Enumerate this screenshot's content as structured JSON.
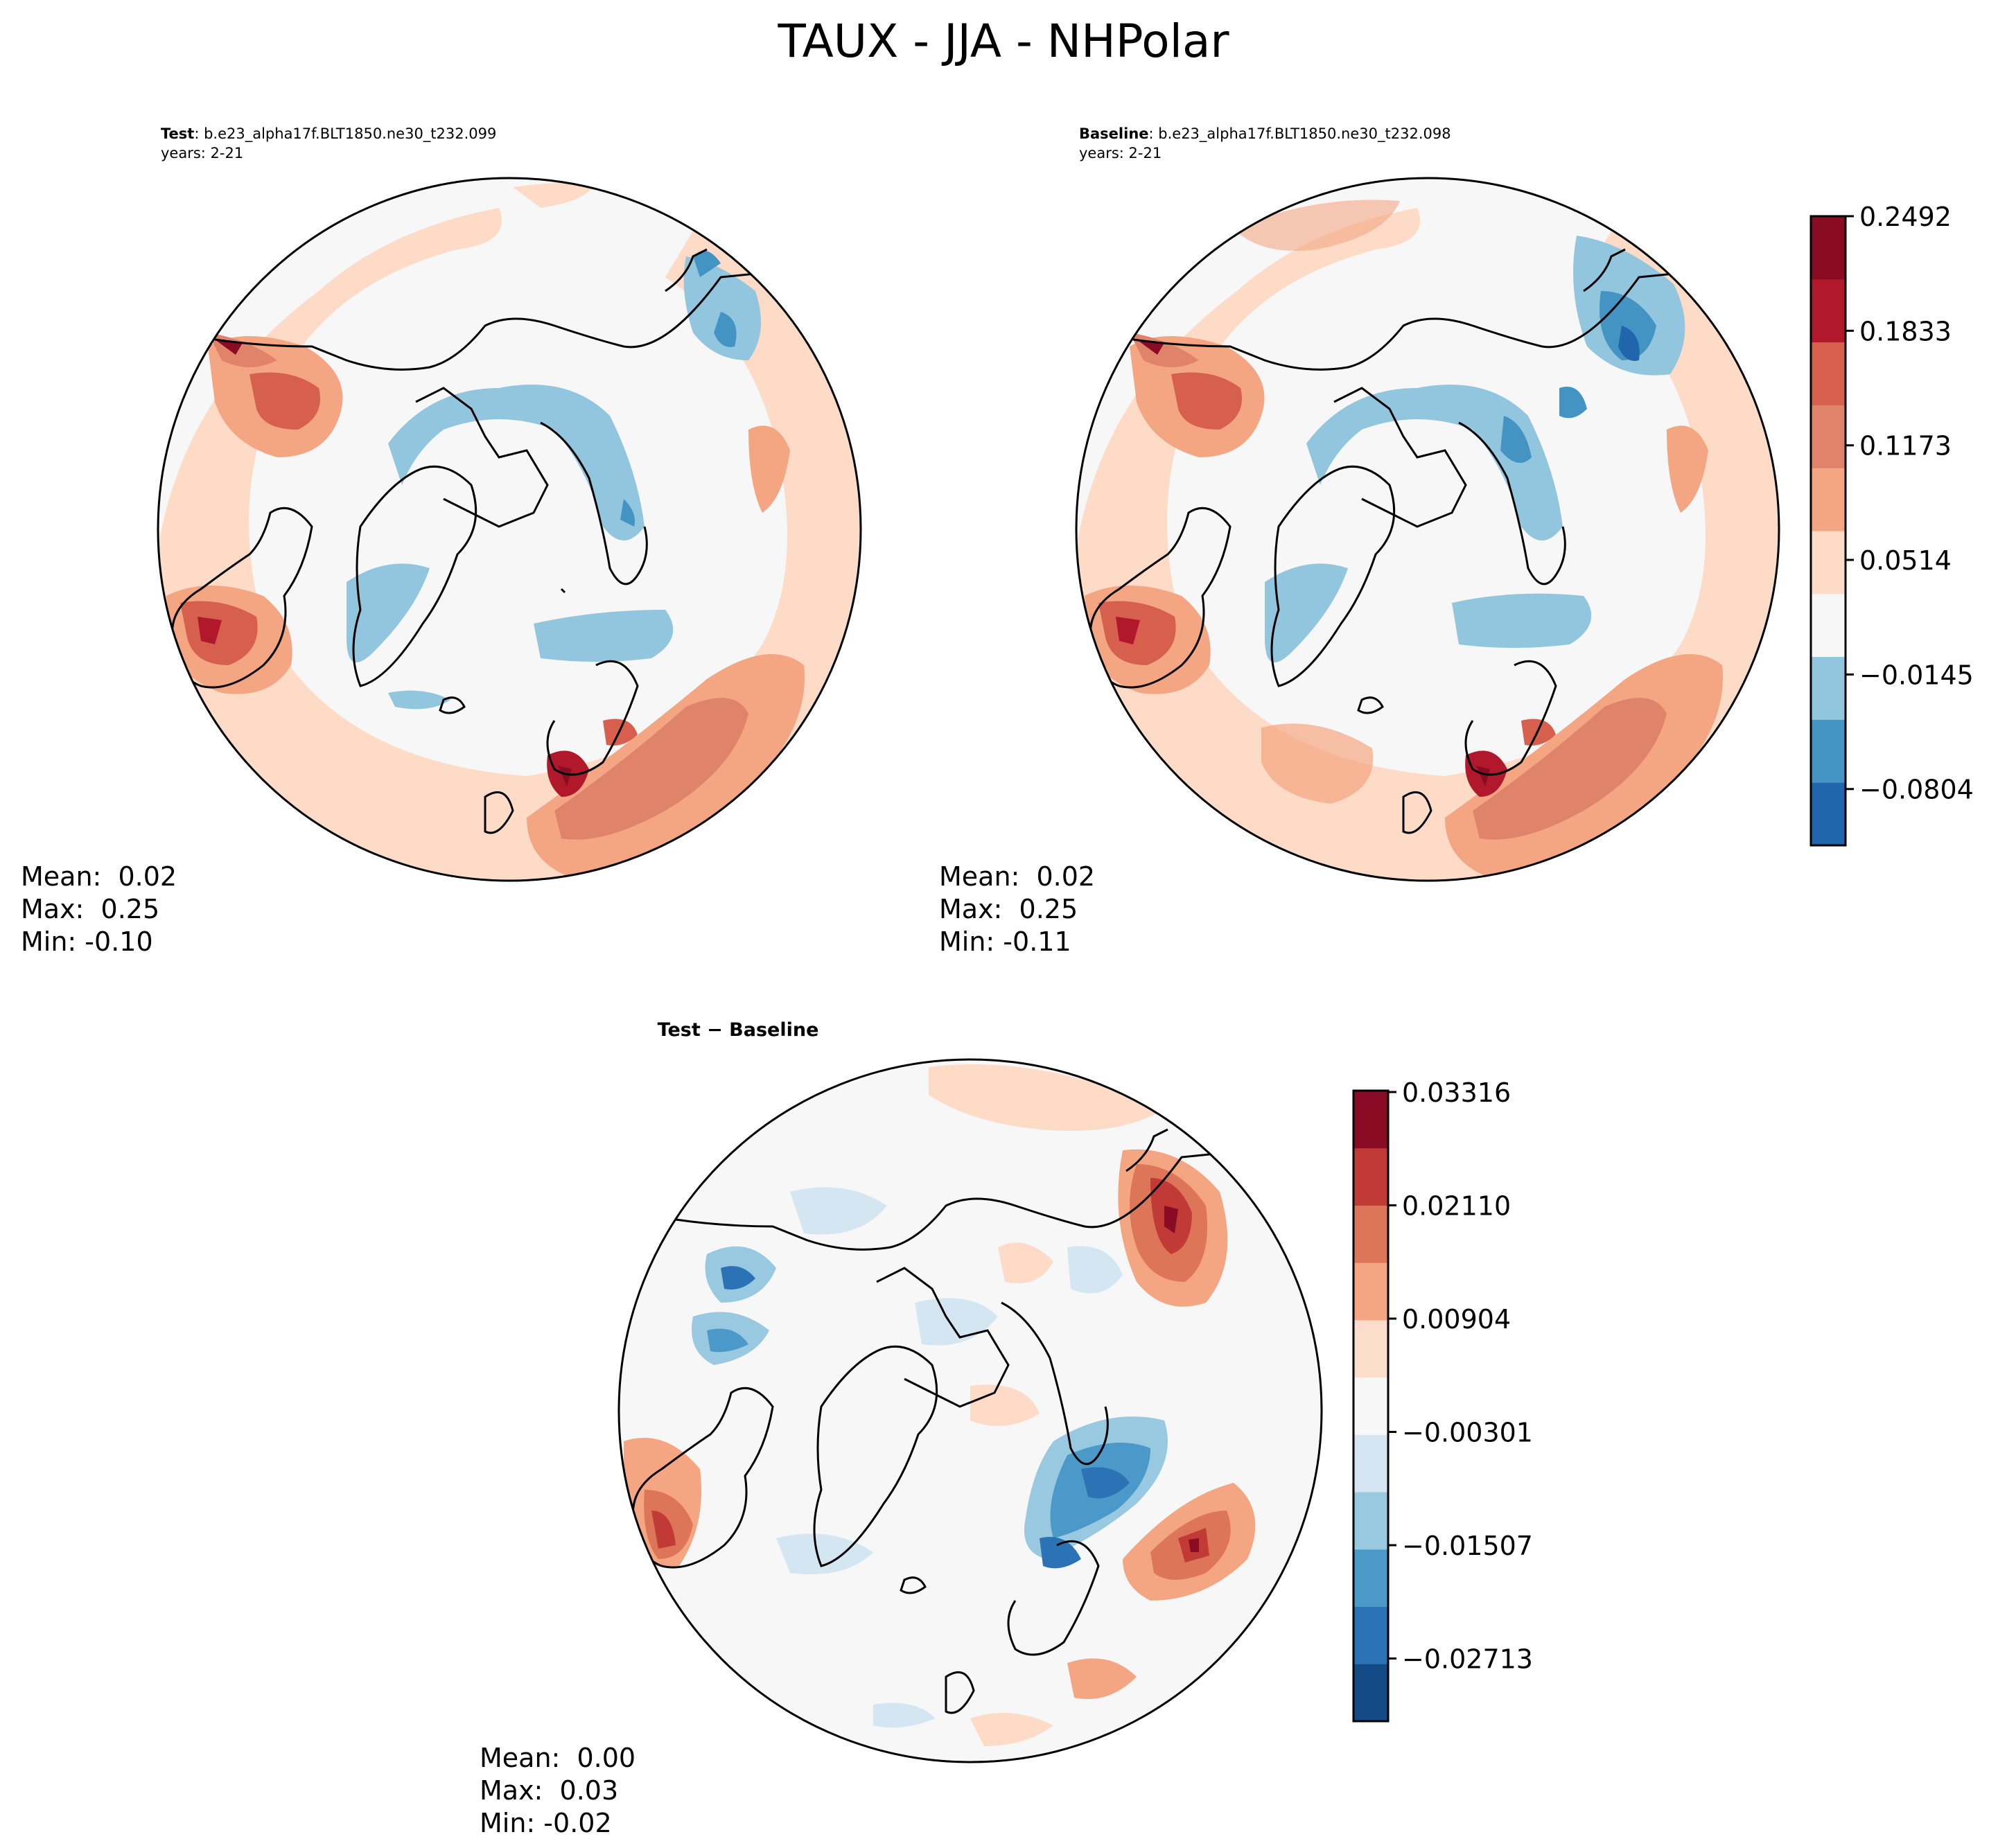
{
  "figure_title": "TAUX - JJA - NHPolar",
  "panels": {
    "test": {
      "label_bold": "Test",
      "label_rest": ": b.e23_alpha17f.BLT1850.ne30_t232.099",
      "years": "years: 2-21",
      "stats": [
        "Mean:  0.02",
        "Max:  0.25",
        "Min: -0.10"
      ]
    },
    "baseline": {
      "label_bold": "Baseline",
      "label_rest": ": b.e23_alpha17f.BLT1850.ne30_t232.098",
      "years": "years: 2-21",
      "stats": [
        "Mean:  0.02",
        "Max:  0.25",
        "Min: -0.11"
      ]
    },
    "diff": {
      "title": "Test − Baseline",
      "stats": [
        "Mean:  0.00",
        "Max:  0.03",
        "Min: -0.02"
      ]
    }
  },
  "colorbars": {
    "main": {
      "tick_labels": [
        "0.2492",
        "0.1833",
        "0.1173",
        "0.0514",
        "−0.0145",
        "−0.0804"
      ],
      "colors": [
        "#2166ac",
        "#4393c3",
        "#92c5de",
        "#f7f7f7",
        "#fddbc7",
        "#f4a582",
        "#e0836b",
        "#d6604d",
        "#b2182b",
        "#8a0b24"
      ]
    },
    "diff": {
      "tick_labels": [
        "0.03316",
        "0.02110",
        "0.00904",
        "−0.00301",
        "−0.01507",
        "−0.02713"
      ],
      "colors": [
        "#134b87",
        "#2c73b5",
        "#4a99c9",
        "#99c9e0",
        "#d4e6f1",
        "#f7f7f7",
        "#fcddcc",
        "#f4a582",
        "#dd7659",
        "#c23a36",
        "#8a0b24"
      ]
    }
  },
  "chart_data": [
    {
      "type": "contour-map",
      "projection": "north-polar-stereographic",
      "title": "Test: b.e23_alpha17f.BLT1850.ne30_t232.099",
      "variable": "TAUX",
      "season": "JJA",
      "region": "NHPolar",
      "levels_labeled": [
        -0.0804,
        -0.0145,
        0.0514,
        0.1173,
        0.1833,
        0.2492
      ],
      "mean": 0.02,
      "max": 0.25,
      "min": -0.1
    },
    {
      "type": "contour-map",
      "projection": "north-polar-stereographic",
      "title": "Baseline: b.e23_alpha17f.BLT1850.ne30_t232.098",
      "variable": "TAUX",
      "season": "JJA",
      "region": "NHPolar",
      "levels_labeled": [
        -0.0804,
        -0.0145,
        0.0514,
        0.1173,
        0.1833,
        0.2492
      ],
      "mean": 0.02,
      "max": 0.25,
      "min": -0.11
    },
    {
      "type": "contour-map",
      "projection": "north-polar-stereographic",
      "title": "Test − Baseline",
      "levels_labeled": [
        -0.02713,
        -0.01507,
        -0.00301,
        0.00904,
        0.0211,
        0.03316
      ],
      "mean": 0.0,
      "max": 0.03,
      "min": -0.02
    }
  ]
}
